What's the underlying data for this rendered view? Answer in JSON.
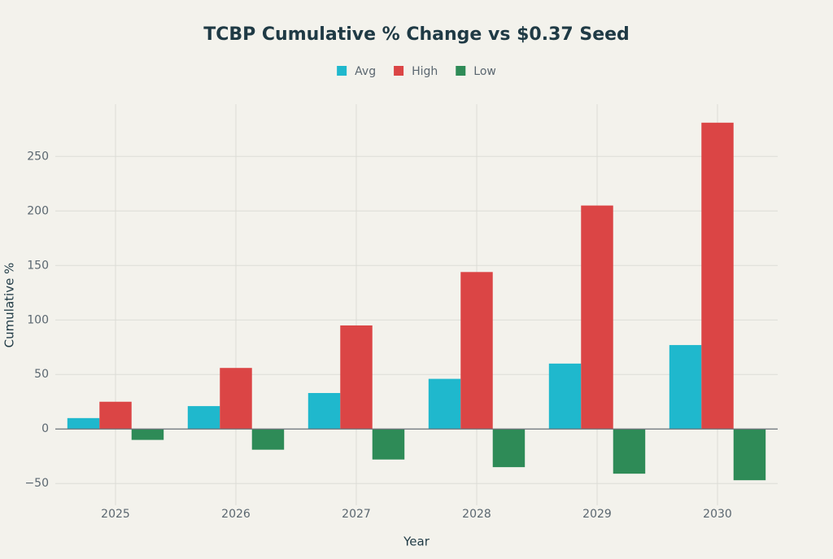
{
  "chart_data": {
    "type": "bar",
    "title": "TCBP Cumulative % Change vs $0.37 Seed",
    "x_label": "Year",
    "y_label": "Cumulative %",
    "categories": [
      "2025",
      "2026",
      "2027",
      "2028",
      "2029",
      "2030"
    ],
    "series": [
      {
        "name": "Avg",
        "color": "#1fb8cd",
        "values": [
          10,
          21,
          33,
          46,
          60,
          77
        ]
      },
      {
        "name": "High",
        "color": "#db4545",
        "values": [
          25,
          56,
          95,
          144,
          205,
          281
        ]
      },
      {
        "name": "Low",
        "color": "#2e8b57",
        "values": [
          -10,
          -19,
          -28,
          -35,
          -41,
          -47
        ]
      }
    ],
    "ylim": [
      -70,
      298
    ],
    "yticks": [
      {
        "value": -50,
        "label": "−50"
      },
      0,
      50,
      100,
      150,
      200,
      250
    ],
    "grid": true,
    "legend": "top"
  }
}
